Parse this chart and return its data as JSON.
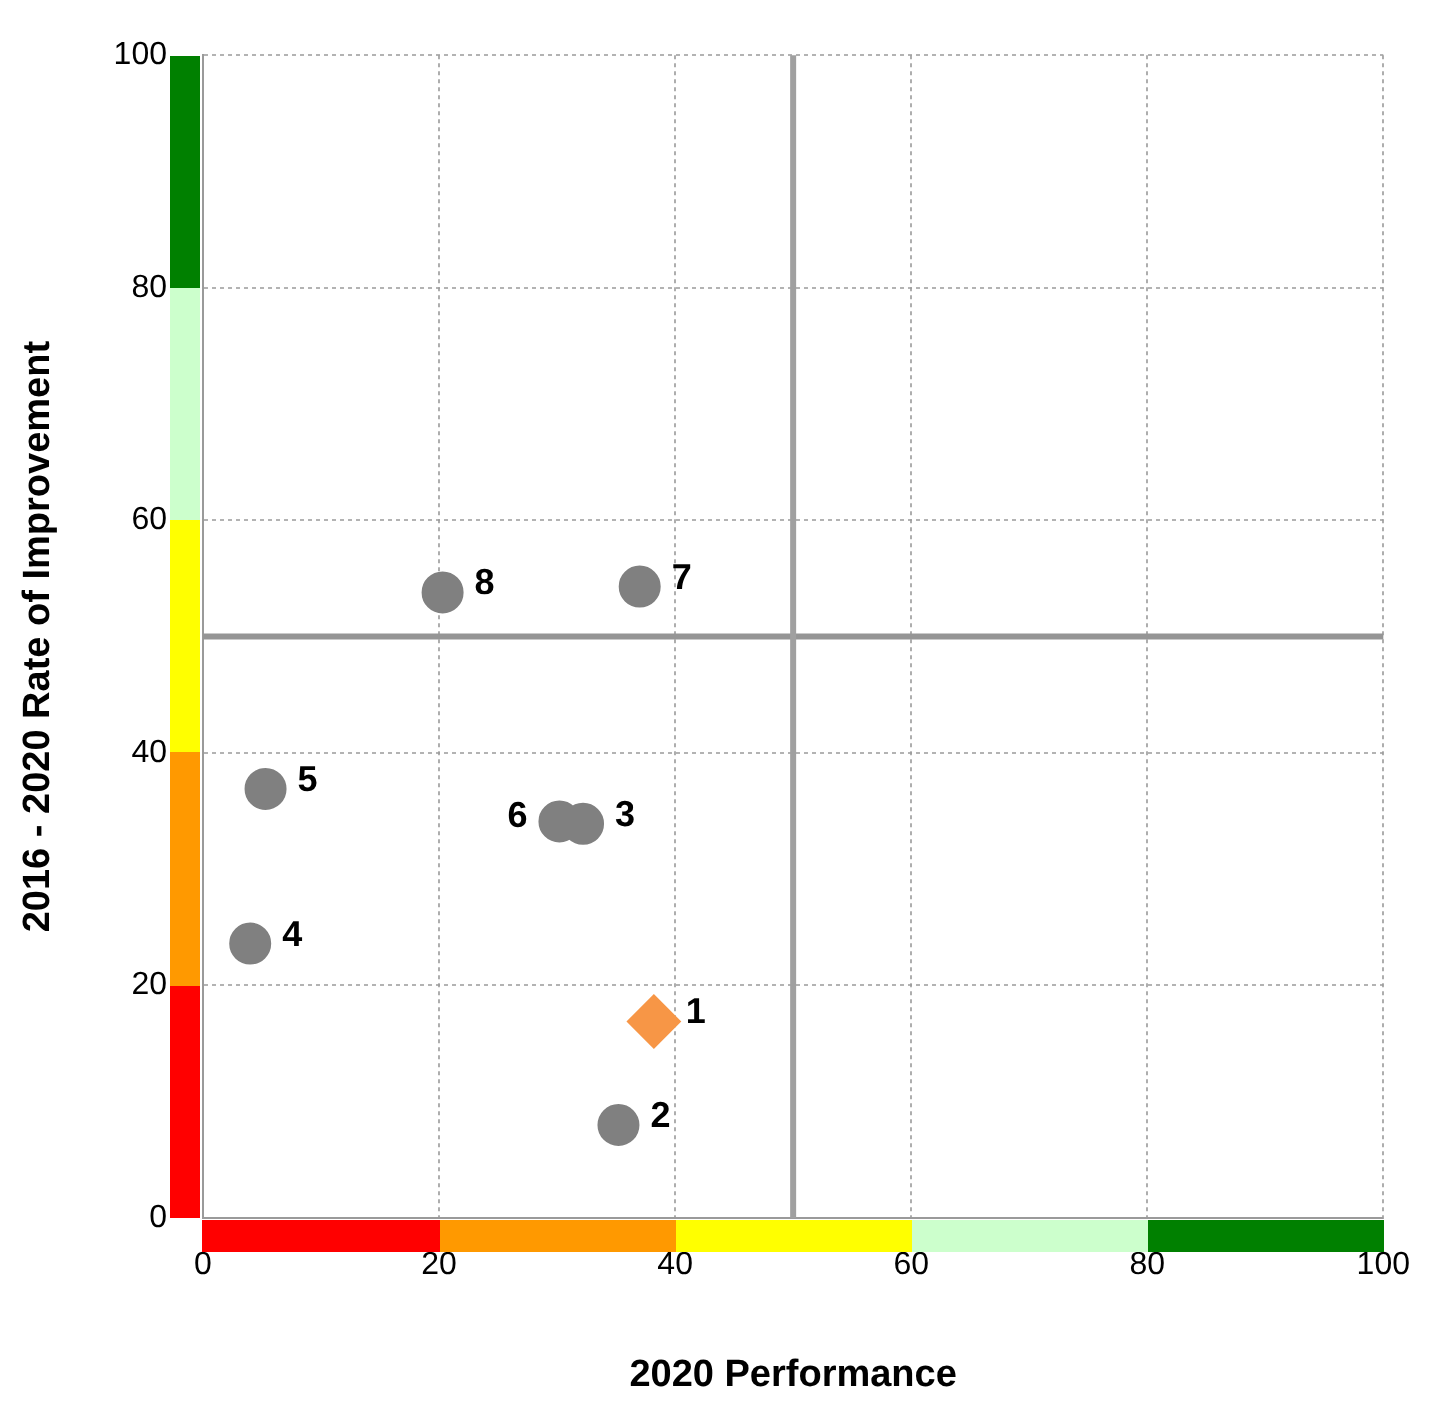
{
  "chart_data": {
    "type": "scatter",
    "xlabel": "2020 Performance",
    "ylabel": "2016 - 2020 Rate of Improvement",
    "xlim": [
      0,
      100
    ],
    "ylim": [
      0,
      100
    ],
    "xticks": [
      0,
      20,
      40,
      60,
      80,
      100
    ],
    "yticks": [
      0,
      20,
      40,
      60,
      80,
      100
    ],
    "grid": true,
    "legend": false,
    "series": [
      {
        "type": "scatter",
        "color": "#808080",
        "marker": "circle",
        "x": [
          35.2,
          32.2,
          4.0,
          5.3,
          30.2,
          37.0,
          20.3
        ],
        "values": [
          8.0,
          33.9,
          23.6,
          36.9,
          34.1,
          54.3,
          53.8
        ]
      },
      {
        "type": "scatter",
        "color": "#f79646",
        "marker": "diamond",
        "x": [
          38.2
        ],
        "values": [
          16.9
        ]
      }
    ],
    "ref_lines": [
      {
        "axis": "x",
        "value": 50,
        "color": "#a0a0a0"
      },
      {
        "axis": "y",
        "value": 50,
        "color": "#959595"
      }
    ],
    "annotations": [
      {
        "text": "1",
        "x": 38.2,
        "y": 16.9
      },
      {
        "text": "2",
        "x": 35.2,
        "y": 8.0
      },
      {
        "text": "3",
        "x": 32.2,
        "y": 33.9
      },
      {
        "text": "4",
        "x": 4.0,
        "y": 23.6
      },
      {
        "text": "5",
        "x": 5.3,
        "y": 36.9
      },
      {
        "text": "6",
        "x": 30.2,
        "y": 34.1
      },
      {
        "text": "7",
        "x": 37.0,
        "y": 54.3
      },
      {
        "text": "8",
        "x": 20.3,
        "y": 53.8
      }
    ]
  }
}
